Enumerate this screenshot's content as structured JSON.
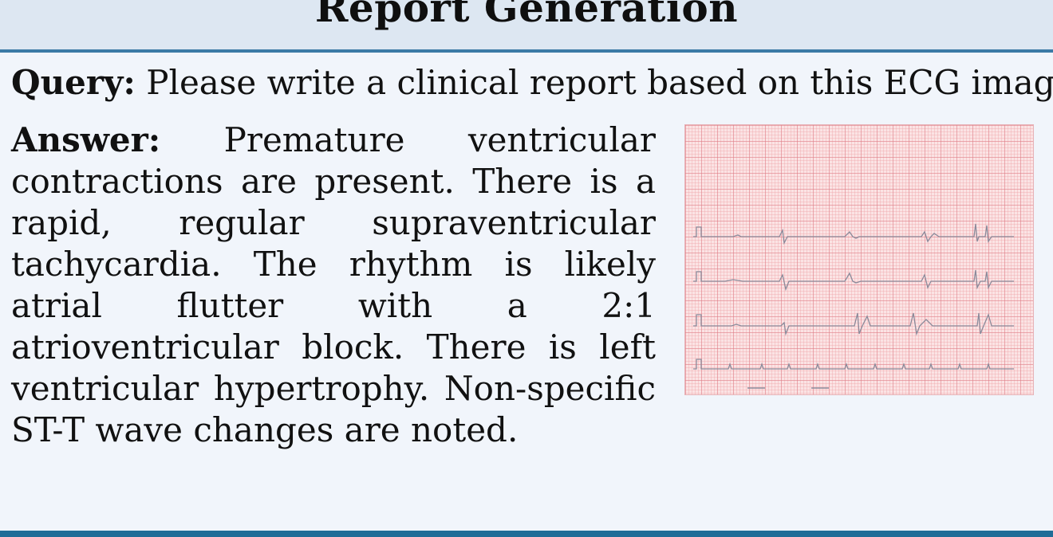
{
  "header": {
    "title": "Report Generation"
  },
  "query": {
    "label": "Query:",
    "text": "Please write a clinical report based on this ECG image."
  },
  "answer": {
    "label": "Answer:",
    "text": "Premature ventricular contractions are present. There is a rapid, regular supraventricular tachycardia. The rhythm is likely atrial flutter with a 2:1 atrioventricular block. There is left ventricular hypertrophy. Non-specific ST-T wave changes are noted."
  },
  "ecg_image": {
    "subject": "12-lead ECG tracing on red grid paper",
    "grid_color": "#f0b4b8",
    "trace_color": "#8a8a9a"
  },
  "colors": {
    "header_bg": "#dde7f2",
    "header_rule": "#3b7aa6",
    "page_bg": "#f1f5fb",
    "bottom_bar": "#1f6c97"
  }
}
